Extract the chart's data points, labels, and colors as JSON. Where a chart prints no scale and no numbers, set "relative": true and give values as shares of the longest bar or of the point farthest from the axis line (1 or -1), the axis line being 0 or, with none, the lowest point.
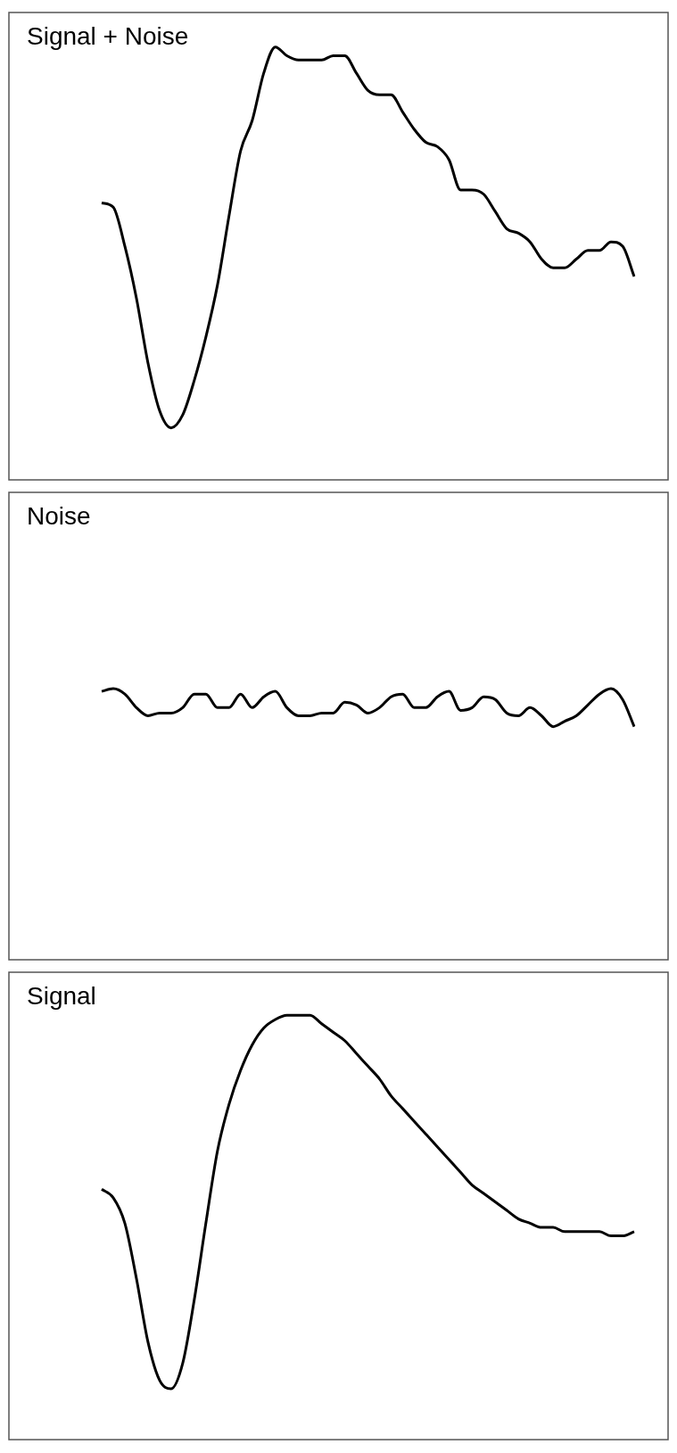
{
  "chart_data": [
    {
      "type": "line",
      "title": "Signal + Noise",
      "relative": true,
      "color": "#000000",
      "categories": [
        null,
        null,
        null,
        null,
        null,
        null,
        null,
        null,
        null,
        null,
        null,
        null,
        null,
        null,
        null,
        null,
        null,
        null,
        null,
        null,
        null,
        null,
        null,
        null,
        null,
        null,
        null,
        null,
        null,
        null,
        null,
        null,
        null,
        null,
        null,
        null,
        null,
        null,
        null,
        null,
        null,
        null,
        null,
        null,
        null,
        null,
        null
      ],
      "values": [
        0.64,
        0.63,
        0.54,
        0.42,
        0.27,
        0.16,
        0.12,
        0.15,
        0.23,
        0.33,
        0.45,
        0.61,
        0.76,
        0.83,
        0.94,
        1,
        0.98,
        0.97,
        0.97,
        0.97,
        0.98,
        0.98,
        0.94,
        0.9,
        0.89,
        0.89,
        0.85,
        0.81,
        0.78,
        0.77,
        0.74,
        0.67,
        0.67,
        0.66,
        0.62,
        0.58,
        0.57,
        0.55,
        0.51,
        0.49,
        0.49,
        0.51,
        0.53,
        0.53,
        0.55,
        0.54,
        0.47
      ]
    },
    {
      "type": "line",
      "title": "Noise",
      "relative": true,
      "color": "#000000",
      "categories": [
        null,
        null,
        null,
        null,
        null,
        null,
        null,
        null,
        null,
        null,
        null,
        null,
        null,
        null,
        null,
        null,
        null,
        null,
        null,
        null,
        null,
        null,
        null,
        null,
        null,
        null,
        null,
        null,
        null,
        null,
        null,
        null,
        null,
        null,
        null,
        null,
        null,
        null,
        null,
        null,
        null,
        null,
        null,
        null,
        null,
        null,
        null
      ],
      "values": [
        0.99,
        1,
        0.98,
        0.93,
        0.9,
        0.91,
        0.91,
        0.93,
        0.98,
        0.98,
        0.93,
        0.93,
        0.98,
        0.93,
        0.97,
        0.99,
        0.93,
        0.9,
        0.9,
        0.91,
        0.91,
        0.95,
        0.94,
        0.91,
        0.93,
        0.97,
        0.98,
        0.93,
        0.93,
        0.97,
        0.99,
        0.92,
        0.93,
        0.97,
        0.96,
        0.91,
        0.9,
        0.93,
        0.9,
        0.86,
        0.88,
        0.9,
        0.94,
        0.98,
        1,
        0.96,
        0.86
      ]
    },
    {
      "type": "line",
      "title": "Signal",
      "relative": true,
      "color": "#000000",
      "categories": [
        null,
        null,
        null,
        null,
        null,
        null,
        null,
        null,
        null,
        null,
        null,
        null,
        null,
        null,
        null,
        null,
        null,
        null,
        null,
        null,
        null,
        null,
        null,
        null,
        null,
        null,
        null,
        null,
        null,
        null,
        null,
        null,
        null,
        null,
        null,
        null,
        null,
        null,
        null,
        null,
        null,
        null,
        null,
        null,
        null,
        null,
        null
      ],
      "values": [
        0.59,
        0.57,
        0.51,
        0.38,
        0.23,
        0.14,
        0.12,
        0.18,
        0.33,
        0.51,
        0.68,
        0.79,
        0.87,
        0.93,
        0.97,
        0.99,
        1,
        1,
        1,
        0.98,
        0.96,
        0.94,
        0.91,
        0.88,
        0.85,
        0.81,
        0.78,
        0.75,
        0.72,
        0.69,
        0.66,
        0.63,
        0.6,
        0.58,
        0.56,
        0.54,
        0.52,
        0.51,
        0.5,
        0.5,
        0.49,
        0.49,
        0.49,
        0.49,
        0.48,
        0.48,
        0.49
      ]
    }
  ]
}
